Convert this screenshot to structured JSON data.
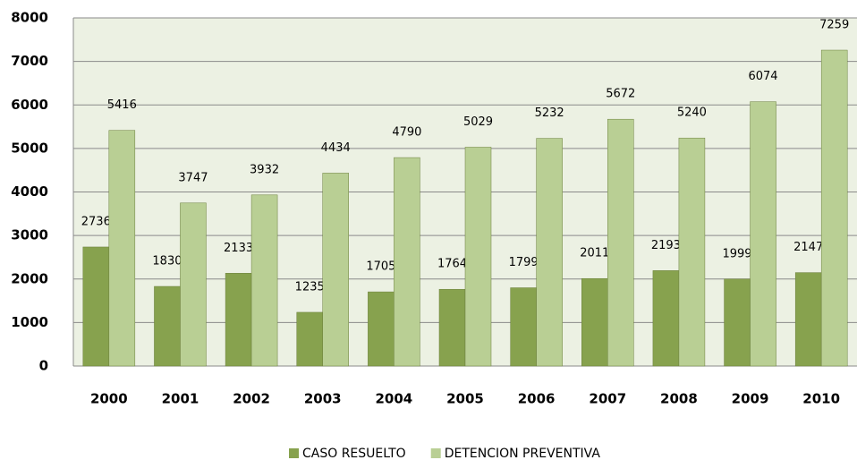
{
  "chart_data": {
    "type": "bar",
    "categories": [
      "2000",
      "2001",
      "2002",
      "2003",
      "2004",
      "2005",
      "2006",
      "2007",
      "2008",
      "2009",
      "2010"
    ],
    "series": [
      {
        "name": "CASO RESUELTO",
        "color": "#87a24e",
        "values": [
          2736,
          1830,
          2133,
          1235,
          1705,
          1764,
          1799,
          2011,
          2193,
          1999,
          2147
        ]
      },
      {
        "name": "DETENCION PREVENTIVA",
        "color": "#b9cf94",
        "values": [
          5416,
          3747,
          3932,
          4434,
          4790,
          5029,
          5232,
          5672,
          5240,
          6074,
          7259
        ]
      }
    ],
    "ylim": [
      0,
      8000
    ],
    "yticks": [
      0,
      1000,
      2000,
      3000,
      4000,
      5000,
      6000,
      7000,
      8000
    ],
    "grid": true,
    "legend": "bottom"
  }
}
